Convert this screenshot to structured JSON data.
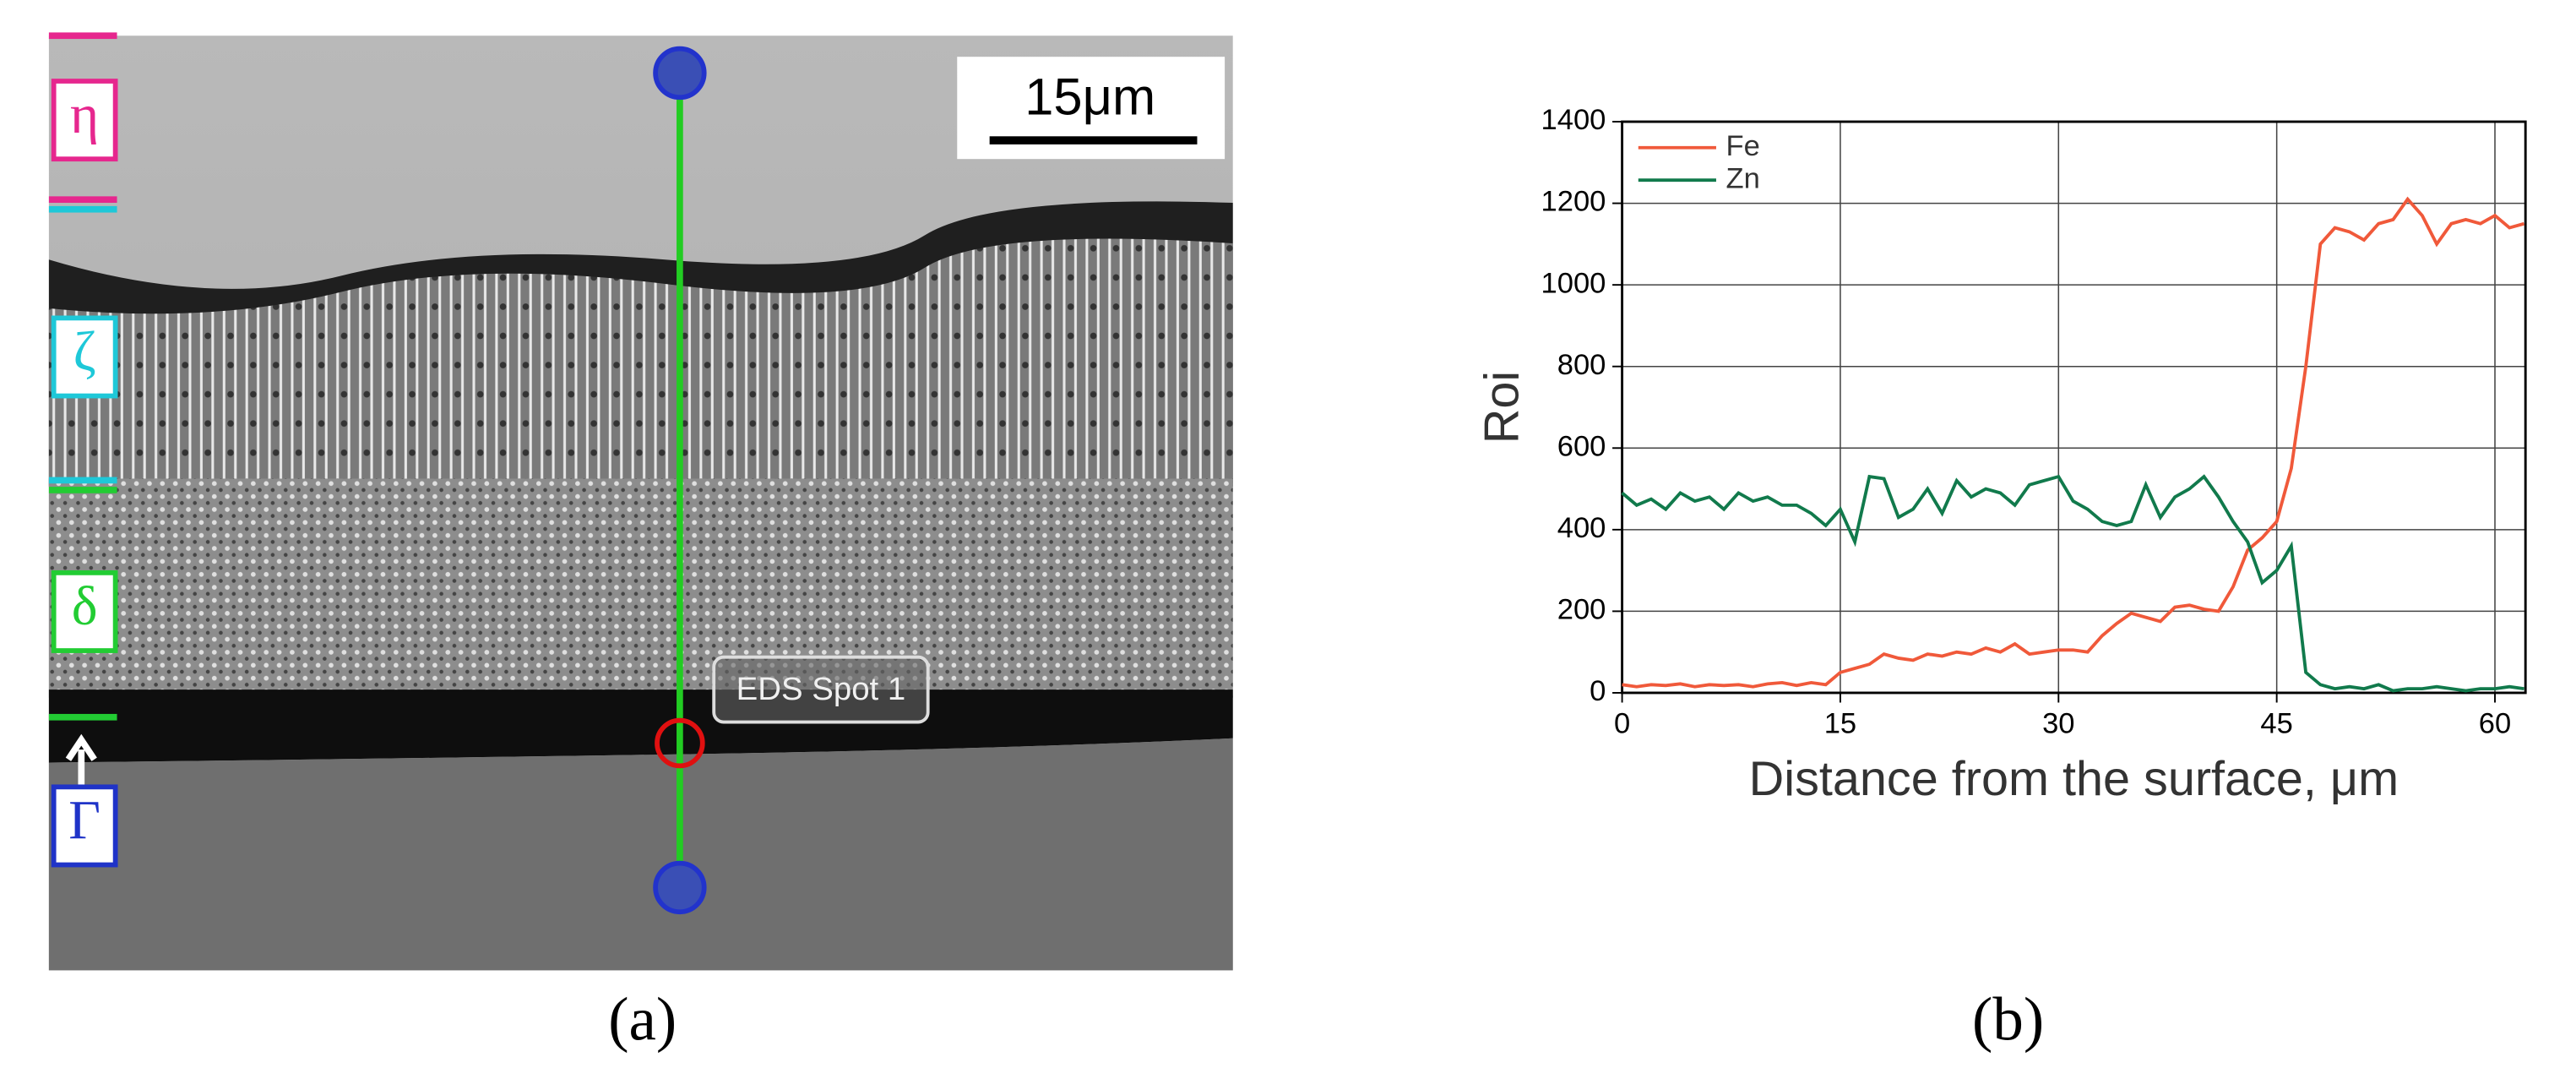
{
  "micrograph": {
    "phases": [
      "η",
      "ζ",
      "δ",
      "Γ"
    ],
    "scale_bar": "15μm",
    "spot_label": "EDS Spot 1"
  },
  "captions": [
    "(a)",
    "(b)"
  ],
  "chart_data": {
    "type": "line",
    "xlabel": "Distance from the surface, μm",
    "ylabel": "Roi",
    "x": [
      0,
      1,
      2,
      3,
      4,
      5,
      6,
      7,
      8,
      9,
      10,
      11,
      12,
      13,
      14,
      15,
      16,
      17,
      18,
      19,
      20,
      21,
      22,
      23,
      24,
      25,
      26,
      27,
      28,
      29,
      30,
      31,
      32,
      33,
      34,
      35,
      36,
      37,
      38,
      39,
      40,
      41,
      42,
      43,
      44,
      45,
      46,
      47,
      48,
      49,
      50,
      51,
      52,
      53,
      54,
      55,
      56,
      57,
      58,
      59,
      60,
      61,
      62
    ],
    "series": [
      {
        "name": "Fe",
        "color": "#f0593a",
        "values": [
          20,
          15,
          20,
          18,
          22,
          15,
          20,
          18,
          20,
          15,
          22,
          25,
          18,
          25,
          20,
          50,
          60,
          70,
          95,
          85,
          80,
          95,
          90,
          100,
          95,
          110,
          100,
          120,
          95,
          100,
          105,
          105,
          100,
          140,
          170,
          195,
          185,
          175,
          210,
          215,
          205,
          200,
          260,
          350,
          380,
          420,
          550,
          800,
          1100,
          1140,
          1130,
          1110,
          1150,
          1160,
          1210,
          1170,
          1100,
          1150,
          1160,
          1150,
          1170,
          1140,
          1150
        ]
      },
      {
        "name": "Zn",
        "color": "#117a4c",
        "values": [
          490,
          460,
          475,
          450,
          490,
          470,
          480,
          450,
          490,
          470,
          480,
          460,
          460,
          440,
          410,
          450,
          370,
          530,
          525,
          430,
          450,
          500,
          440,
          520,
          480,
          500,
          490,
          460,
          510,
          520,
          530,
          470,
          450,
          420,
          410,
          420,
          510,
          430,
          480,
          500,
          530,
          480,
          420,
          370,
          270,
          300,
          360,
          50,
          20,
          10,
          15,
          10,
          20,
          5,
          10,
          10,
          15,
          10,
          5,
          10,
          10,
          15,
          10
        ]
      }
    ],
    "xlim": [
      0,
      62.1
    ],
    "xticks": [
      0,
      15,
      30,
      45,
      60
    ],
    "ylim": [
      0,
      1400
    ],
    "yticks": [
      0,
      200,
      400,
      600,
      800,
      1000,
      1200,
      1400
    ],
    "grid": true,
    "legend": "upper left"
  }
}
